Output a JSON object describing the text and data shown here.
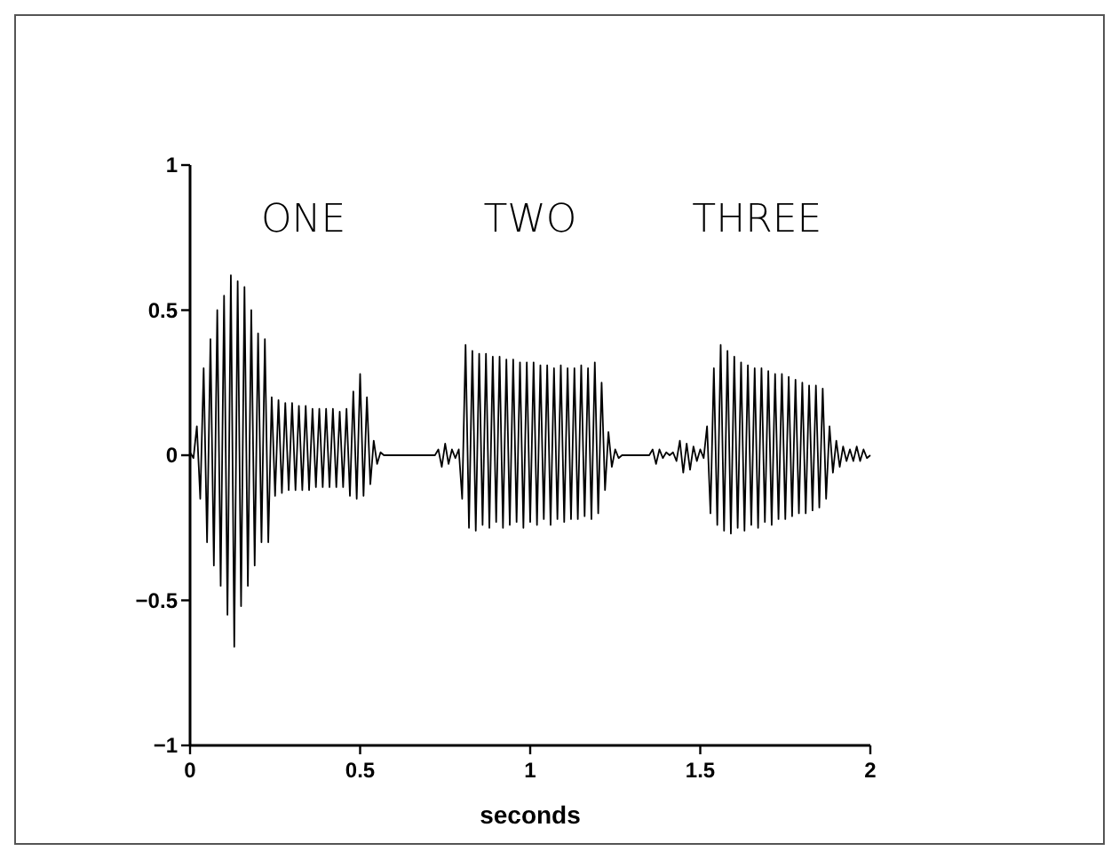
{
  "chart_data": {
    "type": "line",
    "xlabel": "seconds",
    "xlim": [
      0,
      2
    ],
    "ylim": [
      -1,
      1
    ],
    "xticks": [
      0,
      0.5,
      1,
      1.5,
      2
    ],
    "yticks": [
      -1,
      -0.5,
      0,
      0.5,
      1
    ],
    "grid": false,
    "marker": "none",
    "line_style": "solid",
    "annotations": [
      "ONE",
      "TWO",
      "THREE"
    ],
    "x": [
      0,
      0.01,
      0.02,
      0.03,
      0.04,
      0.05,
      0.06,
      0.07,
      0.08,
      0.09,
      0.1,
      0.11,
      0.12,
      0.13,
      0.14,
      0.15,
      0.16,
      0.17,
      0.18,
      0.19,
      0.2,
      0.21,
      0.22,
      0.23,
      0.24,
      0.25,
      0.26,
      0.27,
      0.28,
      0.29,
      0.3,
      0.31,
      0.32,
      0.33,
      0.34,
      0.35,
      0.36,
      0.37,
      0.38,
      0.39,
      0.4,
      0.41,
      0.42,
      0.43,
      0.44,
      0.45,
      0.46,
      0.47,
      0.48,
      0.49,
      0.5,
      0.51,
      0.52,
      0.53,
      0.54,
      0.55,
      0.56,
      0.57,
      0.58,
      0.59,
      0.6,
      0.61,
      0.62,
      0.63,
      0.64,
      0.65,
      0.66,
      0.67,
      0.68,
      0.69,
      0.7,
      0.71,
      0.72,
      0.73,
      0.74,
      0.75,
      0.76,
      0.77,
      0.78,
      0.79,
      0.8,
      0.81,
      0.82,
      0.83,
      0.84,
      0.85,
      0.86,
      0.87,
      0.88,
      0.89,
      0.9,
      0.91,
      0.92,
      0.93,
      0.94,
      0.95,
      0.96,
      0.97,
      0.98,
      0.99,
      1,
      1.01,
      1.02,
      1.03,
      1.04,
      1.05,
      1.06,
      1.07,
      1.08,
      1.09,
      1.1,
      1.11,
      1.12,
      1.13,
      1.14,
      1.15,
      1.16,
      1.17,
      1.18,
      1.19,
      1.2,
      1.21,
      1.22,
      1.23,
      1.24,
      1.25,
      1.26,
      1.27,
      1.28,
      1.29,
      1.3,
      1.31,
      1.32,
      1.33,
      1.34,
      1.35,
      1.36,
      1.37,
      1.38,
      1.39,
      1.4,
      1.41,
      1.42,
      1.43,
      1.44,
      1.45,
      1.46,
      1.47,
      1.48,
      1.49,
      1.5,
      1.51,
      1.52,
      1.53,
      1.54,
      1.55,
      1.56,
      1.57,
      1.58,
      1.59,
      1.6,
      1.61,
      1.62,
      1.63,
      1.64,
      1.65,
      1.66,
      1.67,
      1.68,
      1.69,
      1.7,
      1.71,
      1.72,
      1.73,
      1.74,
      1.75,
      1.76,
      1.77,
      1.78,
      1.79,
      1.8,
      1.81,
      1.82,
      1.83,
      1.84,
      1.85,
      1.86,
      1.87,
      1.88,
      1.89,
      1.9,
      1.91,
      1.92,
      1.93,
      1.94,
      1.95,
      1.96,
      1.97,
      1.98,
      1.99,
      2
    ],
    "series": [
      {
        "color": "#000000",
        "values": [
          0.01,
          -0.01,
          0.1,
          -0.15,
          0.3,
          -0.3,
          0.4,
          -0.38,
          0.5,
          -0.45,
          0.55,
          -0.55,
          0.62,
          -0.66,
          0.6,
          -0.52,
          0.58,
          -0.45,
          0.5,
          -0.38,
          0.42,
          -0.3,
          0.4,
          -0.3,
          0.2,
          -0.14,
          0.19,
          -0.13,
          0.18,
          -0.12,
          0.18,
          -0.12,
          0.17,
          -0.12,
          0.17,
          -0.12,
          0.16,
          -0.11,
          0.16,
          -0.11,
          0.16,
          -0.11,
          0.16,
          -0.11,
          0.15,
          -0.11,
          0.16,
          -0.14,
          0.22,
          -0.15,
          0.28,
          -0.14,
          0.2,
          -0.1,
          0.05,
          -0.03,
          0.01,
          0,
          0,
          0,
          0,
          0,
          0,
          0,
          0,
          0,
          0,
          0,
          0,
          0,
          0,
          0,
          0,
          0.02,
          -0.04,
          0.04,
          -0.03,
          0.02,
          -0.01,
          0.02,
          -0.15,
          0.38,
          -0.25,
          0.36,
          -0.26,
          0.35,
          -0.24,
          0.35,
          -0.25,
          0.34,
          -0.23,
          0.34,
          -0.25,
          0.33,
          -0.24,
          0.33,
          -0.23,
          0.32,
          -0.25,
          0.32,
          -0.23,
          0.32,
          -0.24,
          0.31,
          -0.22,
          0.31,
          -0.24,
          0.3,
          -0.22,
          0.31,
          -0.23,
          0.3,
          -0.22,
          0.3,
          -0.22,
          0.31,
          -0.21,
          0.3,
          -0.22,
          0.32,
          -0.2,
          0.25,
          -0.12,
          0.08,
          -0.04,
          0.02,
          -0.01,
          0,
          0,
          0,
          0,
          0,
          0,
          0,
          0,
          0,
          0.02,
          -0.03,
          0.02,
          -0.01,
          0.01,
          0,
          0.01,
          -0.02,
          0.05,
          -0.06,
          0.04,
          -0.05,
          0.03,
          -0.02,
          0.02,
          -0.01,
          0.1,
          -0.2,
          0.3,
          -0.24,
          0.38,
          -0.26,
          0.36,
          -0.27,
          0.34,
          -0.25,
          0.32,
          -0.26,
          0.31,
          -0.24,
          0.3,
          -0.25,
          0.3,
          -0.23,
          0.29,
          -0.24,
          0.28,
          -0.22,
          0.28,
          -0.22,
          0.27,
          -0.21,
          0.26,
          -0.2,
          0.25,
          -0.2,
          0.24,
          -0.19,
          0.24,
          -0.18,
          0.23,
          -0.15,
          0.1,
          -0.06,
          0.05,
          -0.04,
          0.03,
          -0.02,
          0.02,
          -0.02,
          0.03,
          -0.02,
          0.02,
          -0.01,
          0
        ]
      }
    ]
  }
}
